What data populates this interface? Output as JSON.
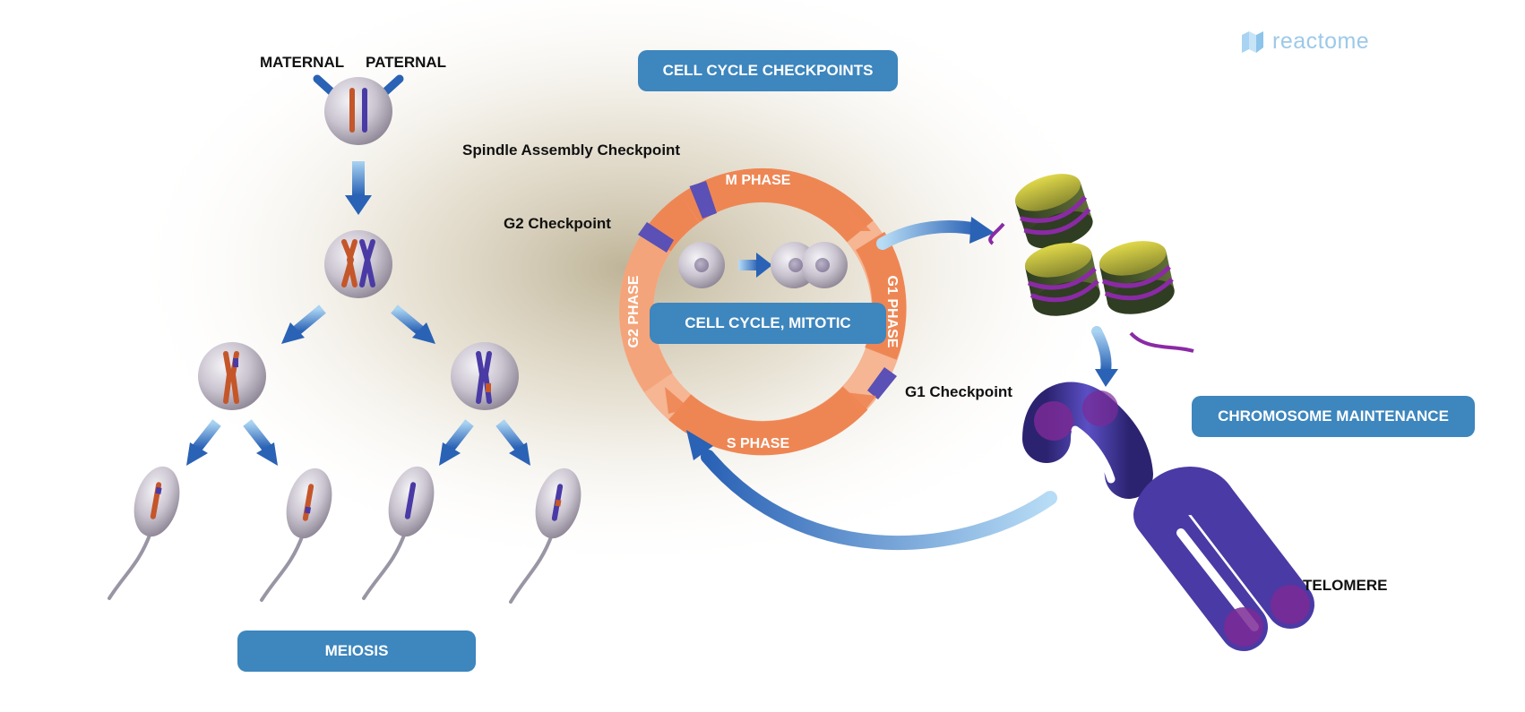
{
  "logo": {
    "text": "reactome"
  },
  "colors": {
    "pill_bg": "#3d86be",
    "arrow_blue": "#2a62b5",
    "ring_orange": "#ee8654",
    "ring_light": "#f6b593",
    "checkpoint_purple": "#5a50b5",
    "chromosome_orange": "#c4562a",
    "chromosome_purple": "#4a3aa5",
    "nucleosome_yellow": "#c8bf3c",
    "nucleosome_green": "#3e4d2a",
    "dna_purple": "#8a2aa5"
  },
  "meiosis": {
    "maternal_label": "MATERNAL",
    "paternal_label": "PATERNAL",
    "pill_label": "MEIOSIS"
  },
  "cell_cycle": {
    "checkpoints_pill": "CELL CYCLE CHECKPOINTS",
    "mitotic_pill": "CELL CYCLE, MITOTIC",
    "spindle_checkpoint": "Spindle Assembly Checkpoint",
    "g2_checkpoint": "G2 Checkpoint",
    "g1_checkpoint": "G1 Checkpoint",
    "phases": {
      "m": "M PHASE",
      "g1": "G1 PHASE",
      "s": "S PHASE",
      "g2": "G2 PHASE"
    }
  },
  "chromosome": {
    "pill_label": "CHROMOSOME MAINTENANCE",
    "telomere_label": "TELOMERE"
  }
}
